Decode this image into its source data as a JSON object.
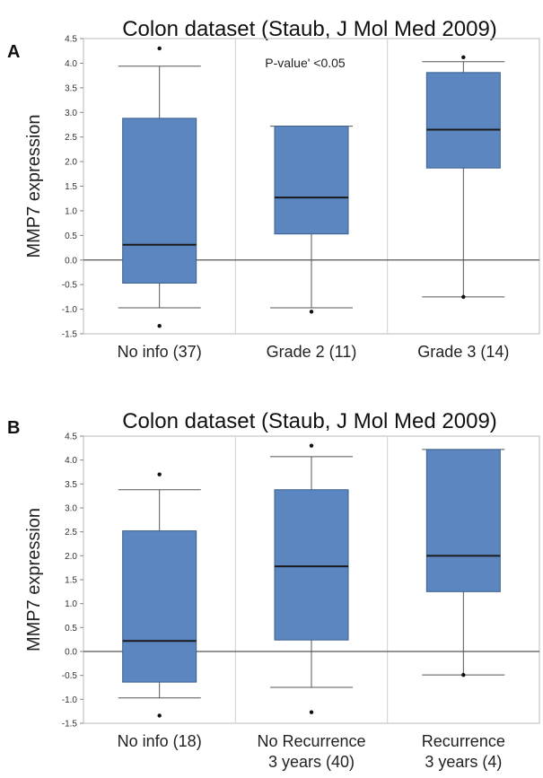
{
  "chart_data": [
    {
      "panel": "A",
      "type": "box",
      "title": "Colon dataset (Staub, J Mol Med 2009)",
      "ylabel": "MMP7 expression",
      "xlabel": "",
      "ylim": [
        -1.5,
        4.5
      ],
      "yticks": [
        "4.5",
        "4.0",
        "3.5",
        "3.0",
        "2.5",
        "2.0",
        "1.5",
        "1.0",
        "0.5",
        "0.0",
        "-0.5",
        "-1.0",
        "-1.5"
      ],
      "ytick_values": [
        4.5,
        4.0,
        3.5,
        3.0,
        2.5,
        2.0,
        1.5,
        1.0,
        0.5,
        0.0,
        -0.5,
        -1.0,
        -1.5
      ],
      "annotation": "P-value' <0.05",
      "color": "#5b86c0",
      "categories": [
        {
          "label": [
            "No info (37)"
          ],
          "whisker_low": -0.97,
          "q1": -0.47,
          "median": 0.31,
          "q3": 2.88,
          "whisker_high": 3.94,
          "outliers": [
            4.3,
            -1.34
          ]
        },
        {
          "label": [
            "Grade 2 (11)"
          ],
          "whisker_low": -0.97,
          "q1": 0.53,
          "median": 1.27,
          "q3": 2.72,
          "whisker_high": 2.72,
          "outliers": [
            -1.05
          ]
        },
        {
          "label": [
            "Grade 3 (14)"
          ],
          "whisker_low": -0.75,
          "q1": 1.87,
          "median": 2.65,
          "q3": 3.81,
          "whisker_high": 4.03,
          "outliers": [
            4.12,
            -0.75
          ]
        }
      ]
    },
    {
      "panel": "B",
      "type": "box",
      "title": "Colon dataset (Staub, J Mol Med 2009)",
      "ylabel": "MMP7 expression",
      "xlabel": "",
      "ylim": [
        -1.5,
        4.5
      ],
      "yticks": [
        "4.5",
        "4.0",
        "3.5",
        "3.0",
        "2.5",
        "2.0",
        "1.5",
        "1.0",
        "0.5",
        "0.0",
        "-0.5",
        "-1.0",
        "-1.5"
      ],
      "ytick_values": [
        4.5,
        4.0,
        3.5,
        3.0,
        2.5,
        2.0,
        1.5,
        1.0,
        0.5,
        0.0,
        -0.5,
        -1.0,
        -1.5
      ],
      "annotation": "",
      "color": "#5b86c0",
      "categories": [
        {
          "label": [
            "No info (18)"
          ],
          "whisker_low": -0.97,
          "q1": -0.64,
          "median": 0.22,
          "q3": 2.52,
          "whisker_high": 3.38,
          "outliers": [
            3.7,
            -1.34
          ]
        },
        {
          "label": [
            "No Recurrence",
            "3 years (40)"
          ],
          "whisker_low": -0.75,
          "q1": 0.24,
          "median": 1.78,
          "q3": 3.38,
          "whisker_high": 4.07,
          "outliers": [
            4.3,
            -1.27
          ]
        },
        {
          "label": [
            "Recurrence",
            "3 years (4)"
          ],
          "whisker_low": -0.49,
          "q1": 1.25,
          "median": 2.0,
          "q3": 4.22,
          "whisker_high": 4.22,
          "outliers": [
            -0.49
          ]
        }
      ]
    }
  ]
}
